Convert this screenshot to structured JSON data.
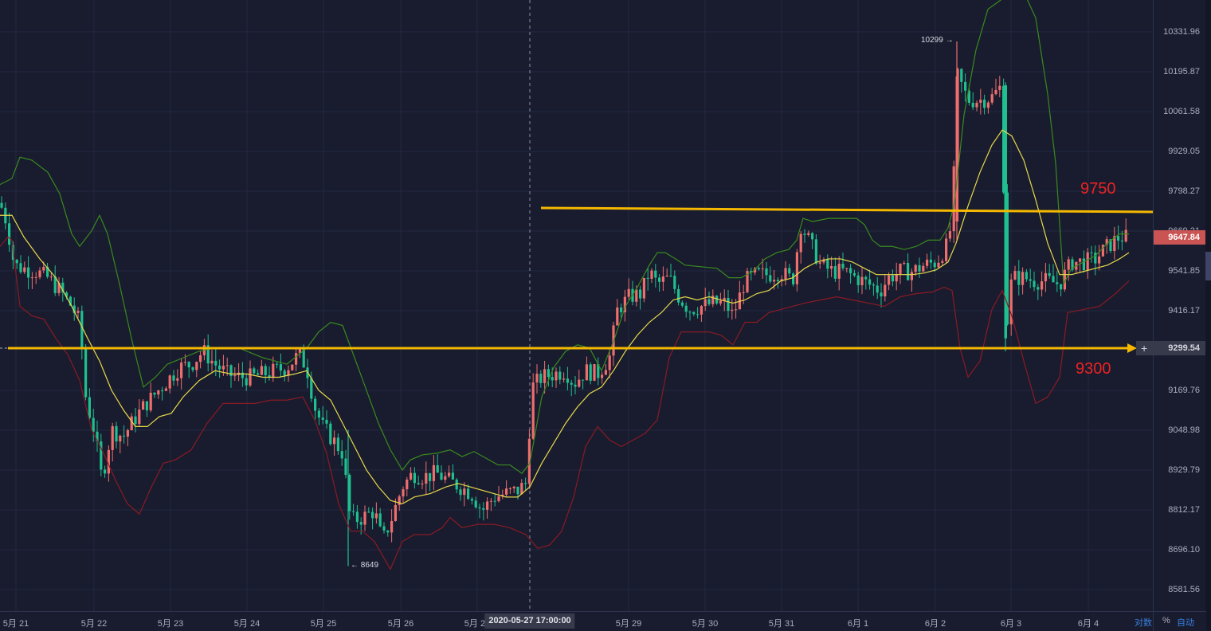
{
  "chart_data": {
    "type": "candlestick",
    "title": "",
    "instrument_hint": "BTC price (daily ticks, hourly-ish candles)",
    "y_axis": {
      "ticks": [
        "10331.96",
        "10195.87",
        "10061.58",
        "9929.05",
        "9798.27",
        "9669.21",
        "9541.85",
        "9416.17",
        "9299.54",
        "9169.76",
        "9048.98",
        "8929.79",
        "8812.17",
        "8696.10",
        "8581.56"
      ],
      "scale": "log",
      "range": [
        8480,
        10470
      ]
    },
    "x_axis": {
      "ticks": [
        "5月 21",
        "5月 22",
        "5月 23",
        "5月 24",
        "5月 25",
        "5月 26",
        "5月 27",
        "5月 29",
        "5月 30",
        "5月 31",
        "6月 1",
        "6月 2",
        "6月 3",
        "6月 4"
      ]
    },
    "last_price": "9647.84",
    "crosshair": {
      "price": "9299.54",
      "time": "2020-05-27 17:00:00"
    },
    "markers": [
      {
        "label": "10299 →",
        "type": "high"
      },
      {
        "label": "← 8649",
        "type": "low"
      }
    ],
    "annotations": [
      {
        "text": "9750",
        "type": "horizontal-arrow-line",
        "price": 9750
      },
      {
        "text": "9300",
        "type": "horizontal-arrow-line",
        "price": 9300
      }
    ],
    "indicators": [
      {
        "name": "Bollinger upper",
        "color": "#3a8a1e"
      },
      {
        "name": "Bollinger middle",
        "color": "#e8d94a"
      },
      {
        "name": "Bollinger lower",
        "color": "#8b1a24"
      }
    ],
    "close_path": [
      [
        0,
        9760
      ],
      [
        8,
        9700
      ],
      [
        18,
        9560
      ],
      [
        30,
        9550
      ],
      [
        45,
        9540
      ],
      [
        60,
        9520
      ],
      [
        75,
        9480
      ],
      [
        90,
        9430
      ],
      [
        100,
        9380
      ],
      [
        108,
        9140
      ],
      [
        118,
        9050
      ],
      [
        128,
        8900
      ],
      [
        140,
        9050
      ],
      [
        155,
        9030
      ],
      [
        168,
        9080
      ],
      [
        180,
        9120
      ],
      [
        195,
        9160
      ],
      [
        210,
        9200
      ],
      [
        225,
        9240
      ],
      [
        240,
        9250
      ],
      [
        255,
        9290
      ],
      [
        270,
        9250
      ],
      [
        285,
        9220
      ],
      [
        300,
        9210
      ],
      [
        315,
        9210
      ],
      [
        330,
        9220
      ],
      [
        345,
        9230
      ],
      [
        360,
        9240
      ],
      [
        375,
        9280
      ],
      [
        385,
        9240
      ],
      [
        395,
        9120
      ],
      [
        405,
        9060
      ],
      [
        418,
        9020
      ],
      [
        430,
        8980
      ],
      [
        440,
        8780
      ],
      [
        455,
        8790
      ],
      [
        470,
        8810
      ],
      [
        480,
        8720
      ],
      [
        492,
        8790
      ],
      [
        505,
        8880
      ],
      [
        518,
        8920
      ],
      [
        532,
        8910
      ],
      [
        548,
        8920
      ],
      [
        562,
        8900
      ],
      [
        578,
        8880
      ],
      [
        592,
        8860
      ],
      [
        605,
        8810
      ],
      [
        620,
        8850
      ],
      [
        635,
        8860
      ],
      [
        650,
        8870
      ],
      [
        660,
        8890
      ],
      [
        668,
        9180
      ],
      [
        680,
        9210
      ],
      [
        695,
        9220
      ],
      [
        710,
        9230
      ],
      [
        720,
        9190
      ],
      [
        735,
        9230
      ],
      [
        750,
        9220
      ],
      [
        765,
        9270
      ],
      [
        775,
        9420
      ],
      [
        790,
        9460
      ],
      [
        805,
        9470
      ],
      [
        815,
        9540
      ],
      [
        825,
        9500
      ],
      [
        840,
        9520
      ],
      [
        852,
        9460
      ],
      [
        865,
        9420
      ],
      [
        880,
        9430
      ],
      [
        895,
        9440
      ],
      [
        910,
        9440
      ],
      [
        920,
        9400
      ],
      [
        935,
        9510
      ],
      [
        950,
        9530
      ],
      [
        965,
        9530
      ],
      [
        980,
        9540
      ],
      [
        995,
        9510
      ],
      [
        1005,
        9690
      ],
      [
        1015,
        9640
      ],
      [
        1030,
        9560
      ],
      [
        1045,
        9540
      ],
      [
        1060,
        9540
      ],
      [
        1075,
        9520
      ],
      [
        1090,
        9500
      ],
      [
        1105,
        9480
      ],
      [
        1115,
        9520
      ],
      [
        1130,
        9540
      ],
      [
        1145,
        9540
      ],
      [
        1160,
        9560
      ],
      [
        1175,
        9570
      ],
      [
        1188,
        9620
      ],
      [
        1195,
        9700
      ],
      [
        1202,
        10180
      ],
      [
        1215,
        10100
      ],
      [
        1230,
        10100
      ],
      [
        1245,
        10110
      ],
      [
        1258,
        10150
      ],
      [
        1262,
        9330
      ],
      [
        1270,
        9520
      ],
      [
        1285,
        9520
      ],
      [
        1300,
        9510
      ],
      [
        1315,
        9510
      ],
      [
        1330,
        9500
      ],
      [
        1345,
        9570
      ],
      [
        1360,
        9570
      ],
      [
        1375,
        9580
      ],
      [
        1390,
        9620
      ],
      [
        1405,
        9650
      ],
      [
        1417,
        9648
      ]
    ],
    "bb_upper": [
      [
        0,
        9820
      ],
      [
        15,
        9840
      ],
      [
        25,
        9910
      ],
      [
        40,
        9900
      ],
      [
        60,
        9860
      ],
      [
        75,
        9790
      ],
      [
        90,
        9660
      ],
      [
        100,
        9620
      ],
      [
        115,
        9670
      ],
      [
        125,
        9720
      ],
      [
        135,
        9660
      ],
      [
        150,
        9500
      ],
      [
        165,
        9330
      ],
      [
        180,
        9180
      ],
      [
        195,
        9210
      ],
      [
        210,
        9250
      ],
      [
        230,
        9270
      ],
      [
        250,
        9290
      ],
      [
        270,
        9300
      ],
      [
        300,
        9300
      ],
      [
        330,
        9270
      ],
      [
        360,
        9250
      ],
      [
        385,
        9300
      ],
      [
        400,
        9350
      ],
      [
        415,
        9380
      ],
      [
        430,
        9370
      ],
      [
        445,
        9270
      ],
      [
        460,
        9170
      ],
      [
        475,
        9070
      ],
      [
        490,
        8990
      ],
      [
        505,
        8930
      ],
      [
        515,
        8960
      ],
      [
        530,
        8975
      ],
      [
        548,
        8980
      ],
      [
        565,
        8990
      ],
      [
        580,
        8970
      ],
      [
        595,
        8985
      ],
      [
        610,
        8965
      ],
      [
        625,
        8945
      ],
      [
        640,
        8945
      ],
      [
        655,
        8920
      ],
      [
        665,
        8950
      ],
      [
        680,
        9150
      ],
      [
        695,
        9240
      ],
      [
        710,
        9290
      ],
      [
        725,
        9310
      ],
      [
        740,
        9300
      ],
      [
        755,
        9230
      ],
      [
        770,
        9320
      ],
      [
        785,
        9430
      ],
      [
        800,
        9490
      ],
      [
        815,
        9560
      ],
      [
        825,
        9600
      ],
      [
        835,
        9600
      ],
      [
        848,
        9580
      ],
      [
        860,
        9560
      ],
      [
        880,
        9555
      ],
      [
        900,
        9550
      ],
      [
        915,
        9520
      ],
      [
        930,
        9520
      ],
      [
        945,
        9540
      ],
      [
        960,
        9580
      ],
      [
        975,
        9600
      ],
      [
        990,
        9610
      ],
      [
        1000,
        9640
      ],
      [
        1008,
        9710
      ],
      [
        1020,
        9700
      ],
      [
        1040,
        9710
      ],
      [
        1060,
        9710
      ],
      [
        1075,
        9710
      ],
      [
        1085,
        9690
      ],
      [
        1095,
        9640
      ],
      [
        1105,
        9620
      ],
      [
        1120,
        9620
      ],
      [
        1135,
        9610
      ],
      [
        1150,
        9620
      ],
      [
        1165,
        9640
      ],
      [
        1180,
        9640
      ],
      [
        1190,
        9680
      ],
      [
        1198,
        9760
      ],
      [
        1210,
        10050
      ],
      [
        1225,
        10270
      ],
      [
        1240,
        10410
      ],
      [
        1255,
        10440
      ],
      [
        1270,
        10470
      ],
      [
        1285,
        10470
      ],
      [
        1300,
        10380
      ],
      [
        1315,
        10120
      ],
      [
        1325,
        9890
      ],
      [
        1335,
        9500
      ],
      [
        1345,
        9550
      ],
      [
        1360,
        9570
      ],
      [
        1375,
        9590
      ],
      [
        1390,
        9630
      ],
      [
        1405,
        9660
      ],
      [
        1417,
        9660
      ]
    ],
    "bb_middle": [
      [
        0,
        9720
      ],
      [
        15,
        9720
      ],
      [
        30,
        9650
      ],
      [
        50,
        9580
      ],
      [
        70,
        9520
      ],
      [
        90,
        9430
      ],
      [
        110,
        9330
      ],
      [
        125,
        9260
      ],
      [
        140,
        9170
      ],
      [
        155,
        9110
      ],
      [
        170,
        9060
      ],
      [
        185,
        9060
      ],
      [
        200,
        9090
      ],
      [
        215,
        9100
      ],
      [
        230,
        9150
      ],
      [
        250,
        9200
      ],
      [
        270,
        9230
      ],
      [
        290,
        9220
      ],
      [
        310,
        9220
      ],
      [
        330,
        9210
      ],
      [
        350,
        9210
      ],
      [
        370,
        9220
      ],
      [
        385,
        9230
      ],
      [
        400,
        9170
      ],
      [
        415,
        9140
      ],
      [
        430,
        9070
      ],
      [
        445,
        9000
      ],
      [
        460,
        8930
      ],
      [
        475,
        8880
      ],
      [
        490,
        8840
      ],
      [
        505,
        8830
      ],
      [
        520,
        8850
      ],
      [
        540,
        8860
      ],
      [
        560,
        8880
      ],
      [
        575,
        8890
      ],
      [
        590,
        8880
      ],
      [
        605,
        8870
      ],
      [
        620,
        8860
      ],
      [
        635,
        8850
      ],
      [
        650,
        8850
      ],
      [
        665,
        8880
      ],
      [
        680,
        8950
      ],
      [
        695,
        9010
      ],
      [
        710,
        9070
      ],
      [
        725,
        9120
      ],
      [
        740,
        9160
      ],
      [
        755,
        9180
      ],
      [
        770,
        9230
      ],
      [
        785,
        9290
      ],
      [
        800,
        9340
      ],
      [
        815,
        9380
      ],
      [
        830,
        9410
      ],
      [
        845,
        9450
      ],
      [
        860,
        9460
      ],
      [
        875,
        9450
      ],
      [
        890,
        9460
      ],
      [
        905,
        9450
      ],
      [
        920,
        9440
      ],
      [
        935,
        9450
      ],
      [
        950,
        9470
      ],
      [
        965,
        9480
      ],
      [
        980,
        9510
      ],
      [
        995,
        9520
      ],
      [
        1010,
        9550
      ],
      [
        1025,
        9570
      ],
      [
        1040,
        9580
      ],
      [
        1055,
        9580
      ],
      [
        1070,
        9570
      ],
      [
        1085,
        9550
      ],
      [
        1100,
        9530
      ],
      [
        1115,
        9530
      ],
      [
        1130,
        9530
      ],
      [
        1145,
        9530
      ],
      [
        1160,
        9535
      ],
      [
        1175,
        9545
      ],
      [
        1190,
        9570
      ],
      [
        1200,
        9630
      ],
      [
        1215,
        9750
      ],
      [
        1230,
        9860
      ],
      [
        1245,
        9950
      ],
      [
        1258,
        10000
      ],
      [
        1270,
        9980
      ],
      [
        1285,
        9900
      ],
      [
        1300,
        9770
      ],
      [
        1315,
        9630
      ],
      [
        1330,
        9530
      ],
      [
        1345,
        9530
      ],
      [
        1360,
        9540
      ],
      [
        1375,
        9550
      ],
      [
        1390,
        9560
      ],
      [
        1405,
        9580
      ],
      [
        1417,
        9600
      ]
    ],
    "bb_lower": [
      [
        0,
        9620
      ],
      [
        10,
        9650
      ],
      [
        15,
        9640
      ],
      [
        25,
        9430
      ],
      [
        40,
        9400
      ],
      [
        55,
        9390
      ],
      [
        70,
        9330
      ],
      [
        85,
        9280
      ],
      [
        100,
        9200
      ],
      [
        115,
        9050
      ],
      [
        130,
        8980
      ],
      [
        145,
        8900
      ],
      [
        160,
        8830
      ],
      [
        175,
        8800
      ],
      [
        190,
        8880
      ],
      [
        205,
        8950
      ],
      [
        220,
        8960
      ],
      [
        240,
        8990
      ],
      [
        260,
        9070
      ],
      [
        280,
        9130
      ],
      [
        300,
        9130
      ],
      [
        320,
        9130
      ],
      [
        340,
        9140
      ],
      [
        360,
        9140
      ],
      [
        380,
        9150
      ],
      [
        395,
        9080
      ],
      [
        410,
        8980
      ],
      [
        425,
        8830
      ],
      [
        440,
        8750
      ],
      [
        455,
        8750
      ],
      [
        470,
        8720
      ],
      [
        490,
        8640
      ],
      [
        505,
        8720
      ],
      [
        520,
        8740
      ],
      [
        540,
        8740
      ],
      [
        555,
        8760
      ],
      [
        565,
        8790
      ],
      [
        580,
        8760
      ],
      [
        600,
        8770
      ],
      [
        620,
        8770
      ],
      [
        640,
        8760
      ],
      [
        660,
        8740
      ],
      [
        675,
        8700
      ],
      [
        690,
        8710
      ],
      [
        705,
        8750
      ],
      [
        720,
        8850
      ],
      [
        735,
        9000
      ],
      [
        750,
        9060
      ],
      [
        765,
        9020
      ],
      [
        780,
        9000
      ],
      [
        795,
        9020
      ],
      [
        810,
        9040
      ],
      [
        825,
        9080
      ],
      [
        840,
        9270
      ],
      [
        855,
        9350
      ],
      [
        875,
        9350
      ],
      [
        890,
        9350
      ],
      [
        905,
        9340
      ],
      [
        920,
        9310
      ],
      [
        935,
        9380
      ],
      [
        950,
        9380
      ],
      [
        965,
        9410
      ],
      [
        980,
        9420
      ],
      [
        995,
        9430
      ],
      [
        1010,
        9440
      ],
      [
        1030,
        9450
      ],
      [
        1050,
        9460
      ],
      [
        1070,
        9450
      ],
      [
        1090,
        9440
      ],
      [
        1110,
        9430
      ],
      [
        1130,
        9460
      ],
      [
        1150,
        9470
      ],
      [
        1170,
        9475
      ],
      [
        1185,
        9490
      ],
      [
        1195,
        9480
      ],
      [
        1205,
        9300
      ],
      [
        1215,
        9210
      ],
      [
        1230,
        9260
      ],
      [
        1245,
        9420
      ],
      [
        1258,
        9480
      ],
      [
        1270,
        9400
      ],
      [
        1285,
        9260
      ],
      [
        1300,
        9130
      ],
      [
        1315,
        9150
      ],
      [
        1330,
        9210
      ],
      [
        1340,
        9410
      ],
      [
        1360,
        9420
      ],
      [
        1380,
        9430
      ],
      [
        1400,
        9470
      ],
      [
        1417,
        9510
      ]
    ]
  },
  "ui": {
    "axis_controls": {
      "log_label": "对数",
      "percent_label": "%",
      "auto_label": "自动"
    },
    "colors": {
      "background": "#181c2e",
      "grid": "#232842",
      "candle_up": "#ee6e6e",
      "candle_down": "#1fbf8f",
      "annotation_line": "#f5b800",
      "annotation_text": "#ee2222",
      "last_price_tag": "#c95453",
      "axis_control_blue": "#3a7fe0"
    }
  }
}
